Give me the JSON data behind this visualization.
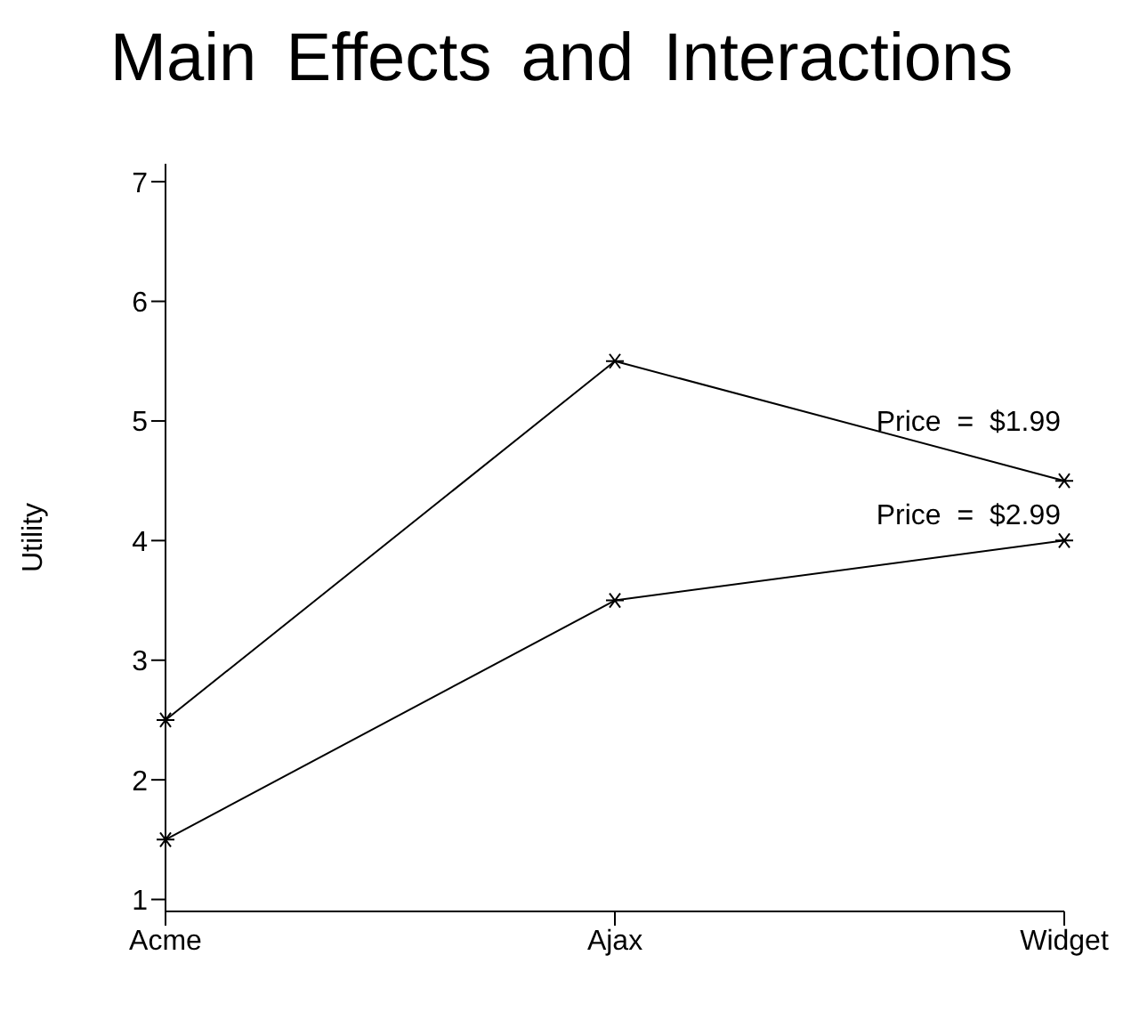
{
  "chart_data": {
    "type": "line",
    "title": "Main Effects and Interactions",
    "ylabel": "Utility",
    "categories": [
      "Acme",
      "Ajax",
      "Widget"
    ],
    "series": [
      {
        "name": "Price  =  $1.99",
        "color": "#000000",
        "values": [
          2.5,
          5.5,
          4.5
        ]
      },
      {
        "name": "Price  =  $2.99",
        "color": "#000000",
        "values": [
          1.5,
          3.5,
          4.0
        ]
      }
    ],
    "ylim": [
      0.9,
      7.15
    ],
    "yticks": [
      1,
      2,
      3,
      4,
      5,
      6,
      7
    ],
    "grid": false,
    "legend": false,
    "marker": "cross",
    "line_style": "solid"
  }
}
